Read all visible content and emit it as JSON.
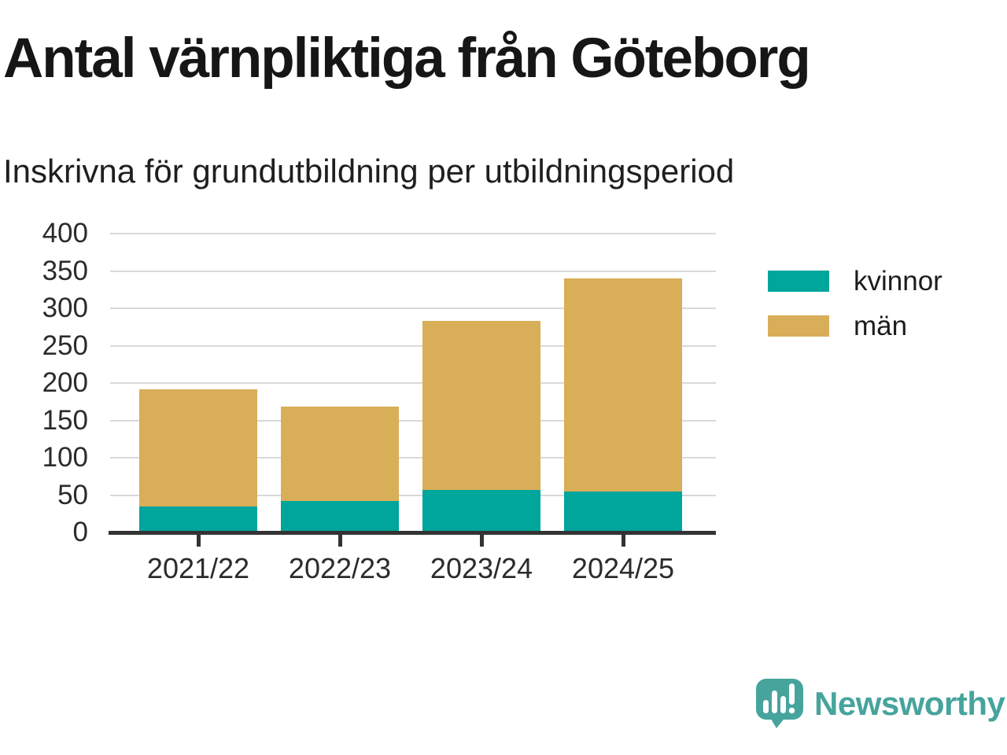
{
  "title": "Antal värnpliktiga från Göteborg",
  "subtitle": "Inskrivna för grundutbildning per utbildningsperiod",
  "colors": {
    "kvinnor": "#00a59b",
    "man": "#d9ae59",
    "grid": "#d9d9d9",
    "axis": "#333333",
    "brand_teal": "#46a49d"
  },
  "chart_data": {
    "type": "bar",
    "stacked": true,
    "title": "Antal värnpliktiga från Göteborg",
    "subtitle": "Inskrivna för grundutbildning per utbildningsperiod",
    "categories": [
      "2021/22",
      "2022/23",
      "2023/24",
      "2024/25"
    ],
    "series": [
      {
        "name": "kvinnor",
        "color": "#00a59b",
        "values": [
          35,
          42,
          57,
          55
        ]
      },
      {
        "name": "män",
        "color": "#d9ae59",
        "values": [
          157,
          126,
          226,
          285
        ]
      }
    ],
    "totals": [
      192,
      168,
      283,
      340
    ],
    "xlabel": "",
    "ylabel": "",
    "ylim": [
      0,
      400
    ],
    "yticks": [
      0,
      50,
      100,
      150,
      200,
      250,
      300,
      350,
      400
    ],
    "grid": true,
    "legend_position": "right"
  },
  "legend": {
    "items": [
      {
        "label": "kvinnor",
        "color": "#00a59b"
      },
      {
        "label": "män",
        "color": "#d9ae59"
      }
    ]
  },
  "footer": {
    "brand": "Newsworthy"
  }
}
